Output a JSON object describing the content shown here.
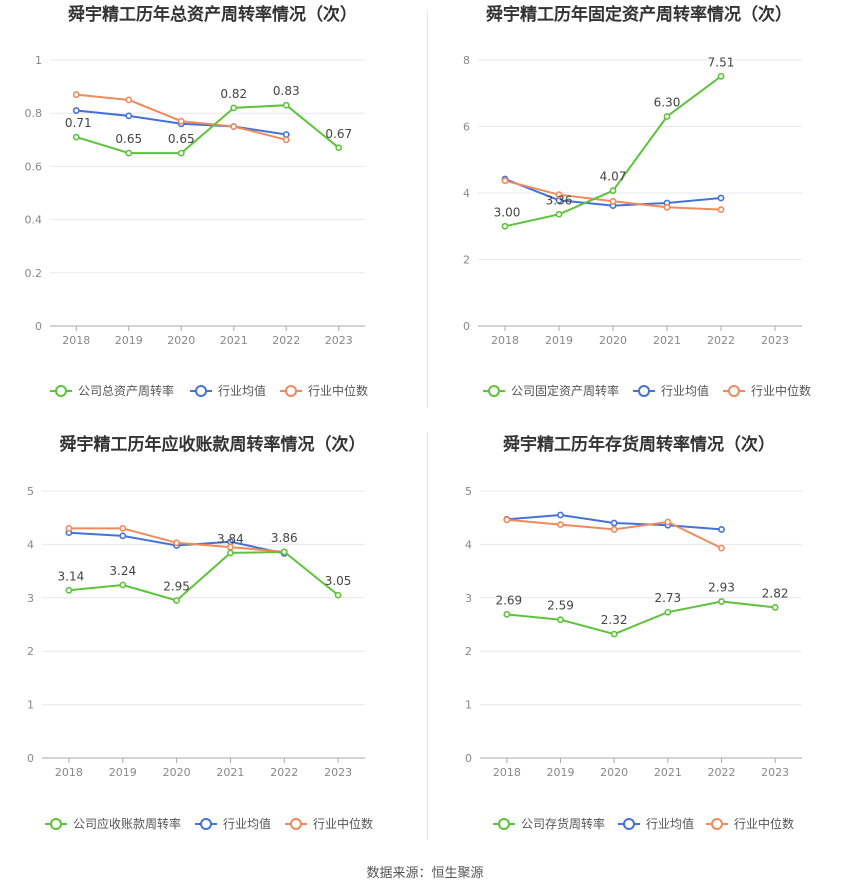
{
  "source_label": "数据来源：恒生聚源",
  "colors": {
    "company": "#5cc33a",
    "industry_avg": "#4472d8",
    "industry_median": "#f08a5d",
    "grid": "#e6e8f0",
    "axis": "#aaaaaa",
    "tick_text": "#888888",
    "title_text": "#333333",
    "label_text": "#444444"
  },
  "chart_data": [
    {
      "type": "line",
      "title": "舜宇精工历年总资产周转率情况（次）",
      "categories": [
        "2018",
        "2019",
        "2020",
        "2021",
        "2022",
        "2023"
      ],
      "ylim": [
        0,
        1
      ],
      "yticks": [
        "0",
        "0.2",
        "0.4",
        "0.6",
        "0.8",
        "1"
      ],
      "grid": true,
      "legend_position": "bottom",
      "series": [
        {
          "name": "公司总资产周转率",
          "values": [
            0.71,
            0.65,
            0.65,
            0.82,
            0.83,
            0.67
          ],
          "labels": [
            "0.71",
            "0.65",
            "0.65",
            "0.82",
            "0.83",
            "0.67"
          ]
        },
        {
          "name": "行业均值",
          "values": [
            0.81,
            0.79,
            0.76,
            0.75,
            0.72,
            null
          ]
        },
        {
          "name": "行业中位数",
          "values": [
            0.87,
            0.85,
            0.77,
            0.75,
            0.7,
            null
          ]
        }
      ]
    },
    {
      "type": "line",
      "title": "舜宇精工历年固定资产周转率情况（次）",
      "categories": [
        "2018",
        "2019",
        "2020",
        "2021",
        "2022",
        "2023"
      ],
      "ylim": [
        0,
        8
      ],
      "yticks": [
        "0",
        "2",
        "4",
        "6",
        "8"
      ],
      "grid": true,
      "legend_position": "bottom",
      "series": [
        {
          "name": "公司固定资产周转率",
          "values": [
            3.0,
            3.36,
            4.07,
            6.3,
            7.51,
            null
          ],
          "labels": [
            "3.00",
            "3.36",
            "4.07",
            "6.30",
            "7.51",
            ""
          ]
        },
        {
          "name": "行业均值",
          "values": [
            4.42,
            3.78,
            3.62,
            3.7,
            3.85,
            null
          ]
        },
        {
          "name": "行业中位数",
          "values": [
            4.37,
            3.95,
            3.75,
            3.57,
            3.5,
            null
          ]
        }
      ]
    },
    {
      "type": "line",
      "title": "舜宇精工历年应收账款周转率情况（次）",
      "categories": [
        "2018",
        "2019",
        "2020",
        "2021",
        "2022",
        "2023"
      ],
      "ylim": [
        0,
        5
      ],
      "yticks": [
        "0",
        "1",
        "2",
        "3",
        "4",
        "5"
      ],
      "grid": true,
      "legend_position": "bottom",
      "series": [
        {
          "name": "公司应收账款周转率",
          "values": [
            3.14,
            3.24,
            2.95,
            3.84,
            3.86,
            3.05
          ],
          "labels": [
            "3.14",
            "3.24",
            "2.95",
            "3.84",
            "3.86",
            "3.05"
          ]
        },
        {
          "name": "行业均值",
          "values": [
            4.22,
            4.16,
            3.98,
            4.05,
            3.83,
            null
          ]
        },
        {
          "name": "行业中位数",
          "values": [
            4.3,
            4.3,
            4.03,
            3.95,
            3.86,
            null
          ]
        }
      ]
    },
    {
      "type": "line",
      "title": "舜宇精工历年存货周转率情况（次）",
      "categories": [
        "2018",
        "2019",
        "2020",
        "2021",
        "2022",
        "2023"
      ],
      "ylim": [
        0,
        5
      ],
      "yticks": [
        "0",
        "1",
        "2",
        "3",
        "4",
        "5"
      ],
      "grid": true,
      "legend_position": "bottom",
      "series": [
        {
          "name": "公司存货周转率",
          "values": [
            2.69,
            2.59,
            2.32,
            2.73,
            2.93,
            2.82
          ],
          "labels": [
            "2.69",
            "2.59",
            "2.32",
            "2.73",
            "2.93",
            "2.82"
          ]
        },
        {
          "name": "行业均值",
          "values": [
            4.47,
            4.55,
            4.4,
            4.36,
            4.28,
            null
          ]
        },
        {
          "name": "行业中位数",
          "values": [
            4.46,
            4.37,
            4.28,
            4.42,
            3.93,
            null
          ]
        }
      ]
    }
  ]
}
